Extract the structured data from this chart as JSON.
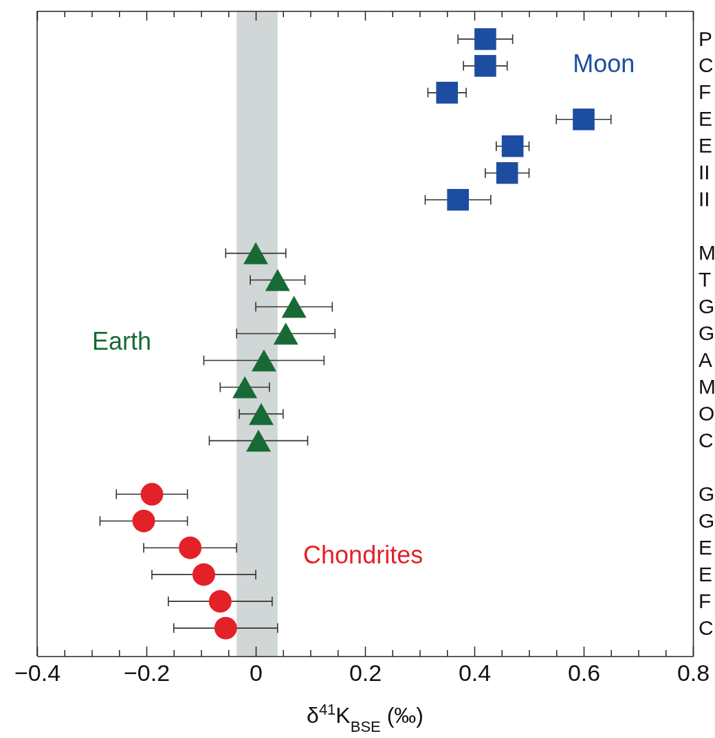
{
  "chart_data": {
    "type": "scatter",
    "orientation": "horizontal",
    "xlabel": "δ$^{41}$K$_{BSE}$ (‰)",
    "categories": [
      "P",
      "C",
      "F",
      "E",
      "E",
      "II",
      "II",
      null,
      "M",
      "T",
      "G",
      "G",
      "A",
      "M",
      "O",
      "C",
      null,
      "G",
      "G",
      "E",
      "E",
      "F",
      "C"
    ],
    "xlim": [
      -0.4,
      0.8
    ],
    "xticks": [
      {
        "value": -0.4,
        "label": "−0.4"
      },
      {
        "value": -0.35,
        "label": null
      },
      {
        "value": -0.3,
        "label": null
      },
      {
        "value": -0.25,
        "label": null
      },
      {
        "value": -0.2,
        "label": "−0.2"
      },
      {
        "value": -0.15,
        "label": null
      },
      {
        "value": -0.1,
        "label": null
      },
      {
        "value": -0.05,
        "label": null
      },
      0,
      {
        "value": 0.05,
        "label": null
      },
      {
        "value": 0.1,
        "label": null
      },
      {
        "value": 0.15,
        "label": null
      },
      0.2,
      {
        "value": 0.25,
        "label": null
      },
      {
        "value": 0.3,
        "label": null
      },
      {
        "value": 0.35,
        "label": null
      },
      0.4,
      {
        "value": 0.45,
        "label": null
      },
      {
        "value": 0.5,
        "label": null
      },
      {
        "value": 0.55,
        "label": null
      },
      0.6,
      {
        "value": 0.65,
        "label": null
      },
      {
        "value": 0.7,
        "label": null
      },
      {
        "value": 0.75,
        "label": null
      },
      0.8
    ],
    "grid": false,
    "bands": [
      {
        "axis": "x",
        "from": -0.035,
        "to": 0.04,
        "color": "#d1d7d6"
      }
    ],
    "series": [
      {
        "name": "Moon",
        "color": "#1c4da1",
        "marker": "square",
        "values": [
          0.42,
          0.42,
          0.35,
          0.6,
          0.47,
          0.46,
          0.37,
          null,
          null,
          null,
          null,
          null,
          null,
          null,
          null,
          null,
          null,
          null,
          null,
          null,
          null,
          null,
          null
        ],
        "errors": [
          0.05,
          0.04,
          0.035,
          0.05,
          0.03,
          0.04,
          0.06,
          null,
          null,
          null,
          null,
          null,
          null,
          null,
          null,
          null,
          null,
          null,
          null,
          null,
          null,
          null,
          null
        ]
      },
      {
        "name": "Earth",
        "color": "#176a36",
        "marker": "triangle",
        "values": [
          null,
          null,
          null,
          null,
          null,
          null,
          null,
          null,
          0.0,
          0.04,
          0.07,
          0.055,
          0.015,
          -0.02,
          0.01,
          0.005,
          null,
          null,
          null,
          null,
          null,
          null,
          null
        ],
        "errors": [
          null,
          null,
          null,
          null,
          null,
          null,
          null,
          null,
          0.055,
          0.05,
          0.07,
          0.09,
          0.11,
          0.045,
          0.04,
          0.09,
          null,
          null,
          null,
          null,
          null,
          null,
          null
        ]
      },
      {
        "name": "Chondrites",
        "color": "#e32128",
        "marker": "circle",
        "values": [
          null,
          null,
          null,
          null,
          null,
          null,
          null,
          null,
          null,
          null,
          null,
          null,
          null,
          null,
          null,
          null,
          null,
          -0.19,
          -0.205,
          -0.12,
          -0.095,
          -0.065,
          -0.055
        ],
        "errors": [
          null,
          null,
          null,
          null,
          null,
          null,
          null,
          null,
          null,
          null,
          null,
          null,
          null,
          null,
          null,
          null,
          null,
          0.065,
          0.08,
          0.085,
          0.095,
          0.095,
          0.095
        ]
      }
    ]
  }
}
